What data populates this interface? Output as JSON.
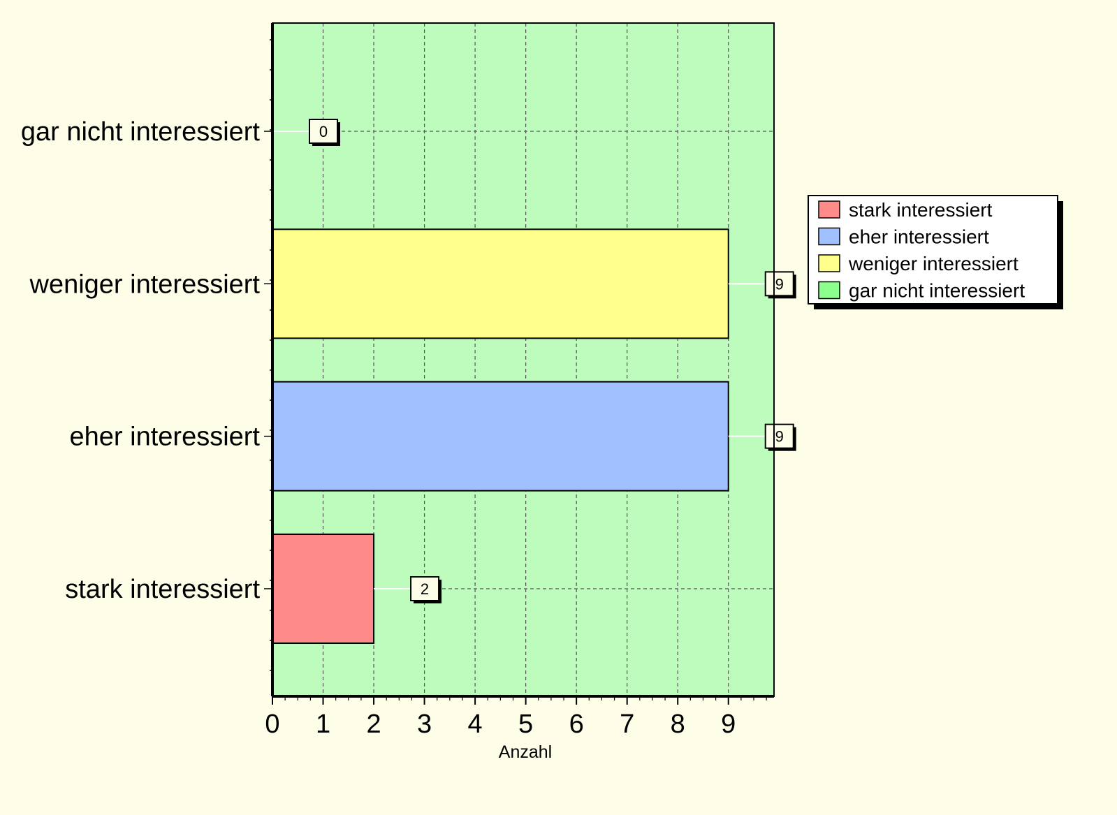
{
  "chart_data": {
    "type": "bar",
    "orientation": "horizontal",
    "categories": [
      "stark interessiert",
      "eher interessiert",
      "weniger interessiert",
      "gar nicht interessiert"
    ],
    "values": [
      2,
      9,
      9,
      0
    ],
    "data_labels": [
      "2",
      "9",
      "9",
      "0"
    ],
    "colors": [
      "#ff8a8a",
      "#a0c0ff",
      "#ffff8c",
      "#8cff8c"
    ],
    "xlabel": "Anzahl",
    "ylabel": "",
    "title": "",
    "xlim": [
      0,
      9.9
    ],
    "x_ticks": [
      0,
      1,
      2,
      3,
      4,
      5,
      6,
      7,
      8,
      9
    ],
    "x_tick_labels": [
      "0",
      "1",
      "2",
      "3",
      "4",
      "5",
      "6",
      "7",
      "8",
      "9"
    ],
    "grid": true,
    "plot_background": "#bdfcbd",
    "page_background": "#fdfde8",
    "legend": {
      "position": "right",
      "entries": [
        {
          "label": "stark interessiert",
          "color": "#ff8a8a"
        },
        {
          "label": "eher interessiert",
          "color": "#a0c0ff"
        },
        {
          "label": "weniger interessiert",
          "color": "#ffff8c"
        },
        {
          "label": "gar nicht interessiert",
          "color": "#8cff8c"
        }
      ]
    }
  }
}
